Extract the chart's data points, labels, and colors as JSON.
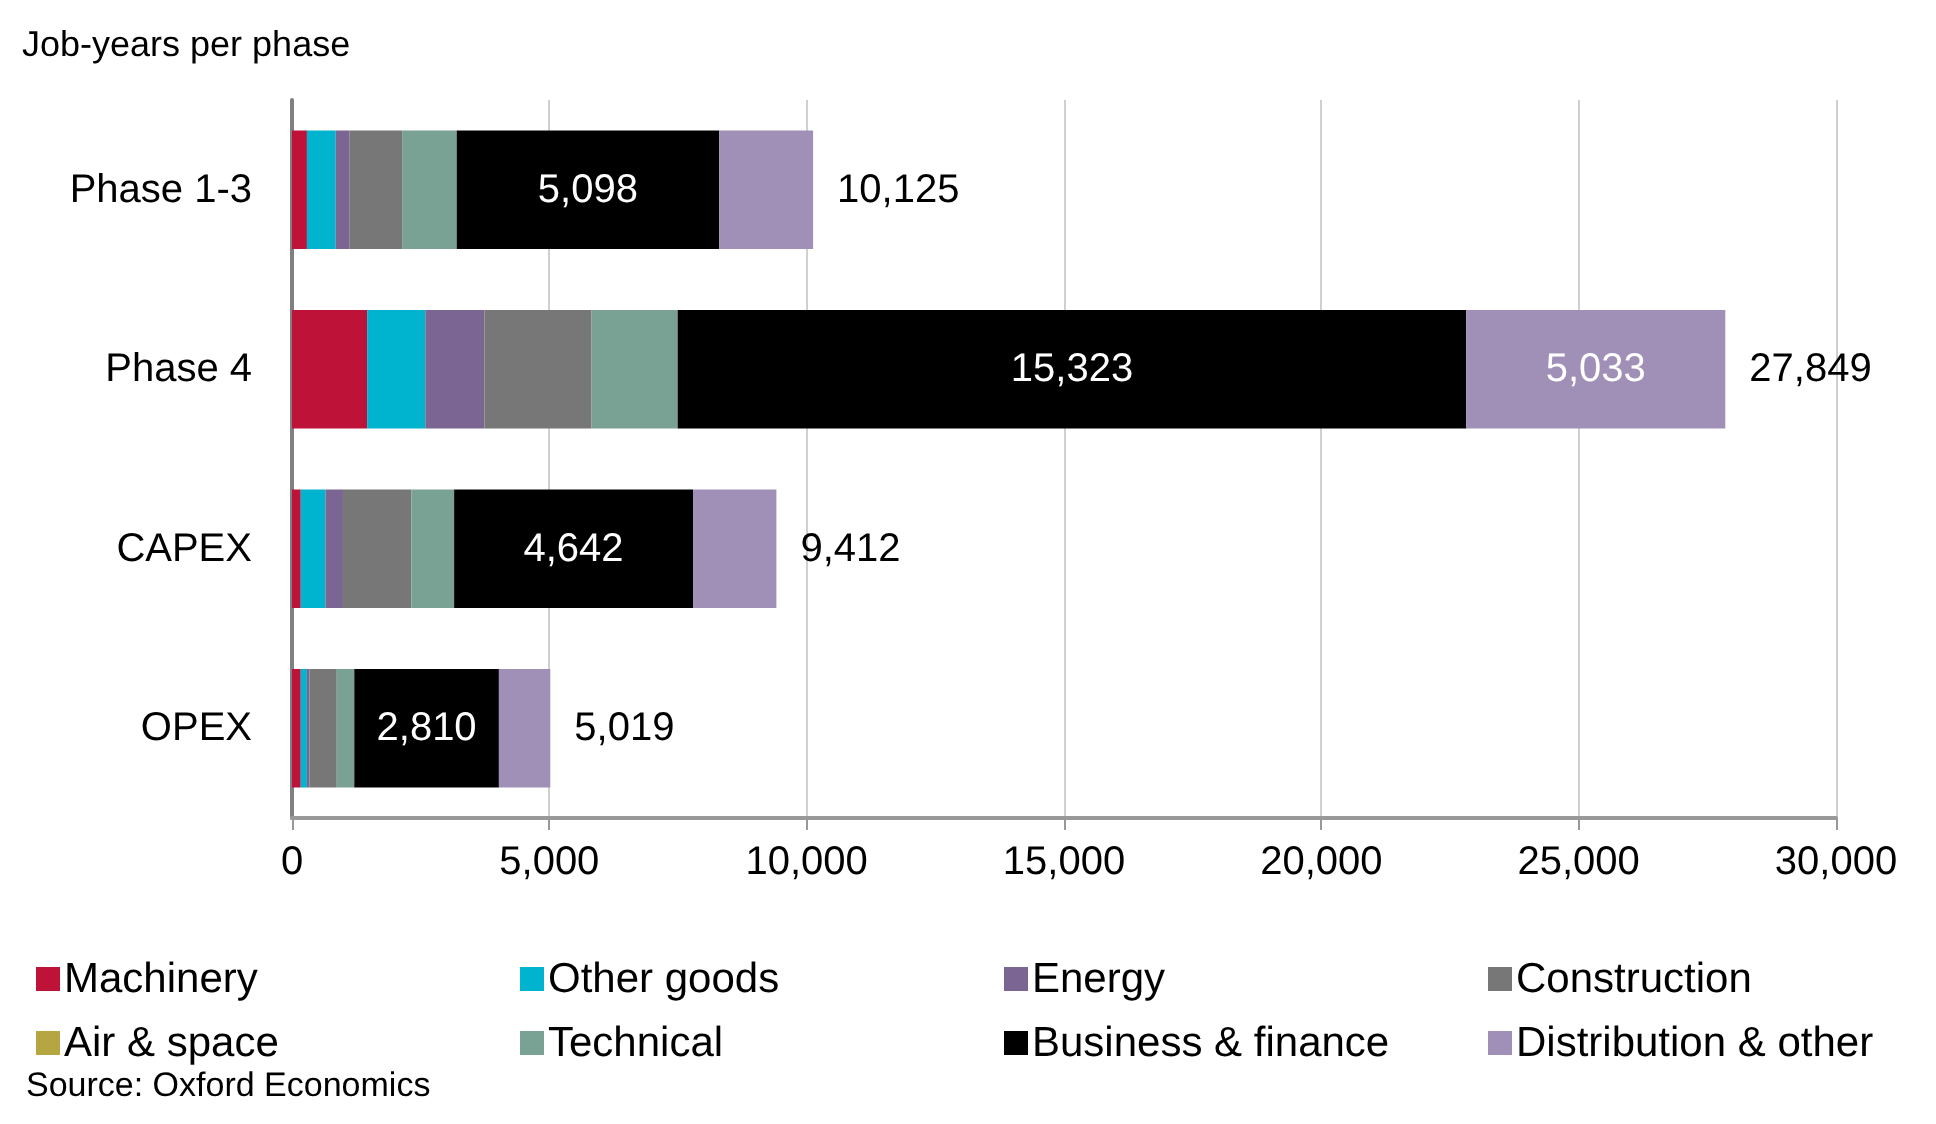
{
  "chart_data": {
    "type": "bar",
    "orientation": "horizontal",
    "stacked": true,
    "title": "Job-years per phase",
    "categories": [
      "Phase 1-3",
      "Phase 4",
      "CAPEX",
      "OPEX"
    ],
    "series": [
      {
        "name": "Machinery",
        "color": "#be1238",
        "values": [
          290,
          1460,
          170,
          170
        ]
      },
      {
        "name": "Other goods",
        "color": "#00b4d0",
        "values": [
          560,
          1130,
          480,
          120
        ]
      },
      {
        "name": "Energy",
        "color": "#7a6593",
        "values": [
          270,
          1150,
          340,
          50
        ]
      },
      {
        "name": "Construction",
        "color": "#777777",
        "values": [
          1020,
          2080,
          1330,
          530
        ]
      },
      {
        "name": "Air & space",
        "color": "#b5a642",
        "values": [
          0,
          0,
          0,
          0
        ]
      },
      {
        "name": "Technical",
        "color": "#7aa294",
        "values": [
          1060,
          1673,
          830,
          340
        ]
      },
      {
        "name": "Business & finance",
        "color": "#000000",
        "values": [
          5098,
          15323,
          4642,
          2810
        ],
        "value_labels": [
          "5,098",
          "15,323",
          "4,642",
          "2,810"
        ]
      },
      {
        "name": "Distribution & other",
        "color": "#a08fb6",
        "values": [
          1827,
          5033,
          1620,
          999
        ],
        "value_labels": [
          null,
          "5,033",
          null,
          null
        ]
      }
    ],
    "totals": [
      "10,125",
      "27,849",
      "9,412",
      "5,019"
    ],
    "xlim": [
      0,
      30000
    ],
    "xticks": [
      {
        "value": 0,
        "label": "0"
      },
      {
        "value": 5000,
        "label": "5,000"
      },
      {
        "value": 10000,
        "label": "10,000"
      },
      {
        "value": 15000,
        "label": "15,000"
      },
      {
        "value": 20000,
        "label": "20,000"
      },
      {
        "value": 25000,
        "label": "25,000"
      },
      {
        "value": 30000,
        "label": "30,000"
      }
    ],
    "grid": "x",
    "legend": "bottom",
    "annotations": [
      "Source: Oxford Economics"
    ]
  }
}
